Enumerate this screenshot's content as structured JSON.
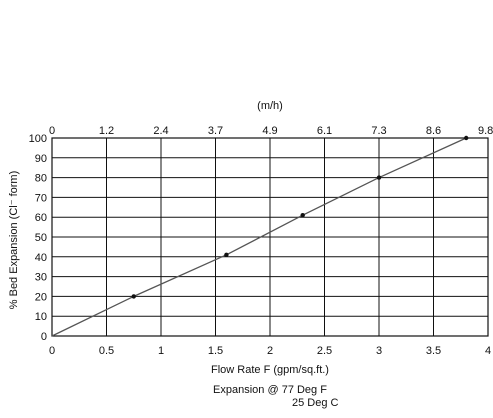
{
  "chart_data": {
    "type": "line",
    "title": "",
    "xlabel": "Flow Rate F (gpm/sq.ft.)",
    "ylabel": "% Bed Expansion (Cl⁻ form)",
    "top_axis_label": "(m/h)",
    "xlim": [
      0,
      4
    ],
    "ylim": [
      0,
      100
    ],
    "x_ticks": [
      "0",
      "0.5",
      "1",
      "1.5",
      "2",
      "2.5",
      "3",
      "3.5",
      "4"
    ],
    "y_ticks": [
      "0",
      "10",
      "20",
      "30",
      "40",
      "50",
      "60",
      "70",
      "80",
      "90",
      "100"
    ],
    "top_ticks": [
      {
        "x": 0,
        "label": "0"
      },
      {
        "x": 0.5,
        "label": "1.2"
      },
      {
        "x": 1,
        "label": "2.4"
      },
      {
        "x": 1.5,
        "label": "3.7"
      },
      {
        "x": 2,
        "label": "4.9"
      },
      {
        "x": 2.5,
        "label": "6.1"
      },
      {
        "x": 3,
        "label": "7.3"
      },
      {
        "x": 3.5,
        "label": "8.6"
      },
      {
        "x": 4,
        "label": "9.8"
      }
    ],
    "grid": true,
    "series": [
      {
        "x": [
          0,
          0.75,
          1.6,
          2.3,
          3.0,
          3.8
        ],
        "y": [
          0,
          20,
          41,
          61,
          80,
          100
        ]
      }
    ],
    "markers": [
      {
        "x": 0.75,
        "y": 20
      },
      {
        "x": 1.6,
        "y": 41
      },
      {
        "x": 2.3,
        "y": 61
      },
      {
        "x": 3.0,
        "y": 80
      },
      {
        "x": 3.8,
        "y": 100
      }
    ],
    "annotation": {
      "line1": "Expansion @ 77 Deg F",
      "line2": "25 Deg C"
    },
    "colors": {
      "series_line": "#555555",
      "marker": "#111111",
      "grid": "#111111"
    }
  }
}
